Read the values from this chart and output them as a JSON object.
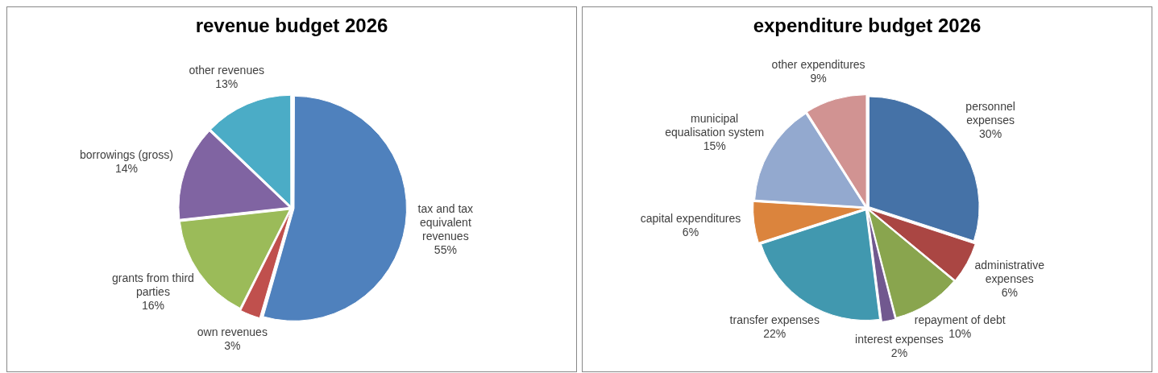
{
  "chart_data": [
    {
      "type": "pie",
      "title": "revenue budget 2026",
      "categories": [
        "tax and tax equivalent revenues",
        "own revenues",
        "grants from third parties",
        "borrowings (gross)",
        "other revenues"
      ],
      "values": [
        55,
        3,
        16,
        14,
        13
      ],
      "value_labels": [
        "55%",
        "3%",
        "16%",
        "14%",
        "13%"
      ],
      "colors": [
        "#4f81bd",
        "#c0504d",
        "#9bbb59",
        "#8064a2",
        "#4bacc6"
      ],
      "legend": false
    },
    {
      "type": "pie",
      "title": "expenditure budget 2026",
      "categories": [
        "personnel expenses",
        "administrative expenses",
        "repayment of debt",
        "interest expenses",
        "transfer expenses",
        "capital expenditures",
        "municipal equalisation system",
        "other expenditures"
      ],
      "values": [
        30,
        6,
        10,
        2,
        22,
        6,
        15,
        9
      ],
      "value_labels": [
        "30%",
        "6%",
        "10%",
        "2%",
        "22%",
        "6%",
        "15%",
        "9%"
      ],
      "colors": [
        "#4572a7",
        "#aa4643",
        "#89a54e",
        "#71588f",
        "#4198af",
        "#db843d",
        "#93a9cf",
        "#d19392"
      ],
      "legend": false
    }
  ]
}
